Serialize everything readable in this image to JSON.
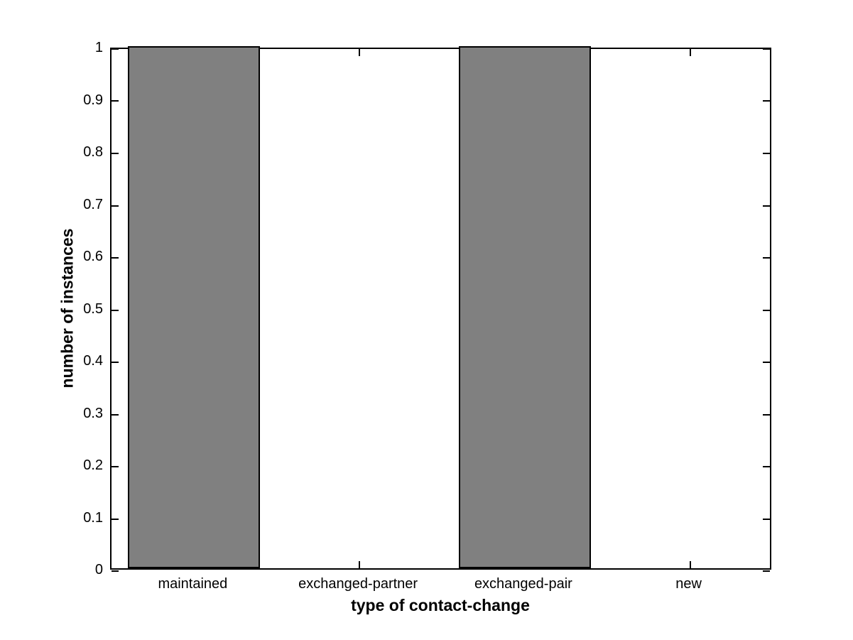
{
  "figure": {
    "background_color": "#ffffff",
    "axis_color": "#000000",
    "text_color": "#000000"
  },
  "chart_data": {
    "type": "bar",
    "title": "",
    "xlabel": "type of contact-change",
    "ylabel": "number of instances",
    "categories": [
      "maintained",
      "exchanged-partner",
      "exchanged-pair",
      "new"
    ],
    "values": [
      1,
      0,
      1,
      0
    ],
    "ylim": [
      0,
      1
    ],
    "xlim": [
      0.5,
      4.5
    ],
    "yticks": {
      "values": [
        0,
        0.1,
        0.2,
        0.3,
        0.4,
        0.5,
        0.6,
        0.7,
        0.8,
        0.9,
        1
      ],
      "labels": [
        "0",
        "0.1",
        "0.2",
        "0.3",
        "0.4",
        "0.5",
        "0.6",
        "0.7",
        "0.8",
        "0.9",
        "1"
      ]
    },
    "bar_width_units": 0.8,
    "bar_face_color": "#808080",
    "bar_edge_color": "#000000",
    "grid": false,
    "legend": null,
    "tick_style": "inward-mirrored"
  }
}
